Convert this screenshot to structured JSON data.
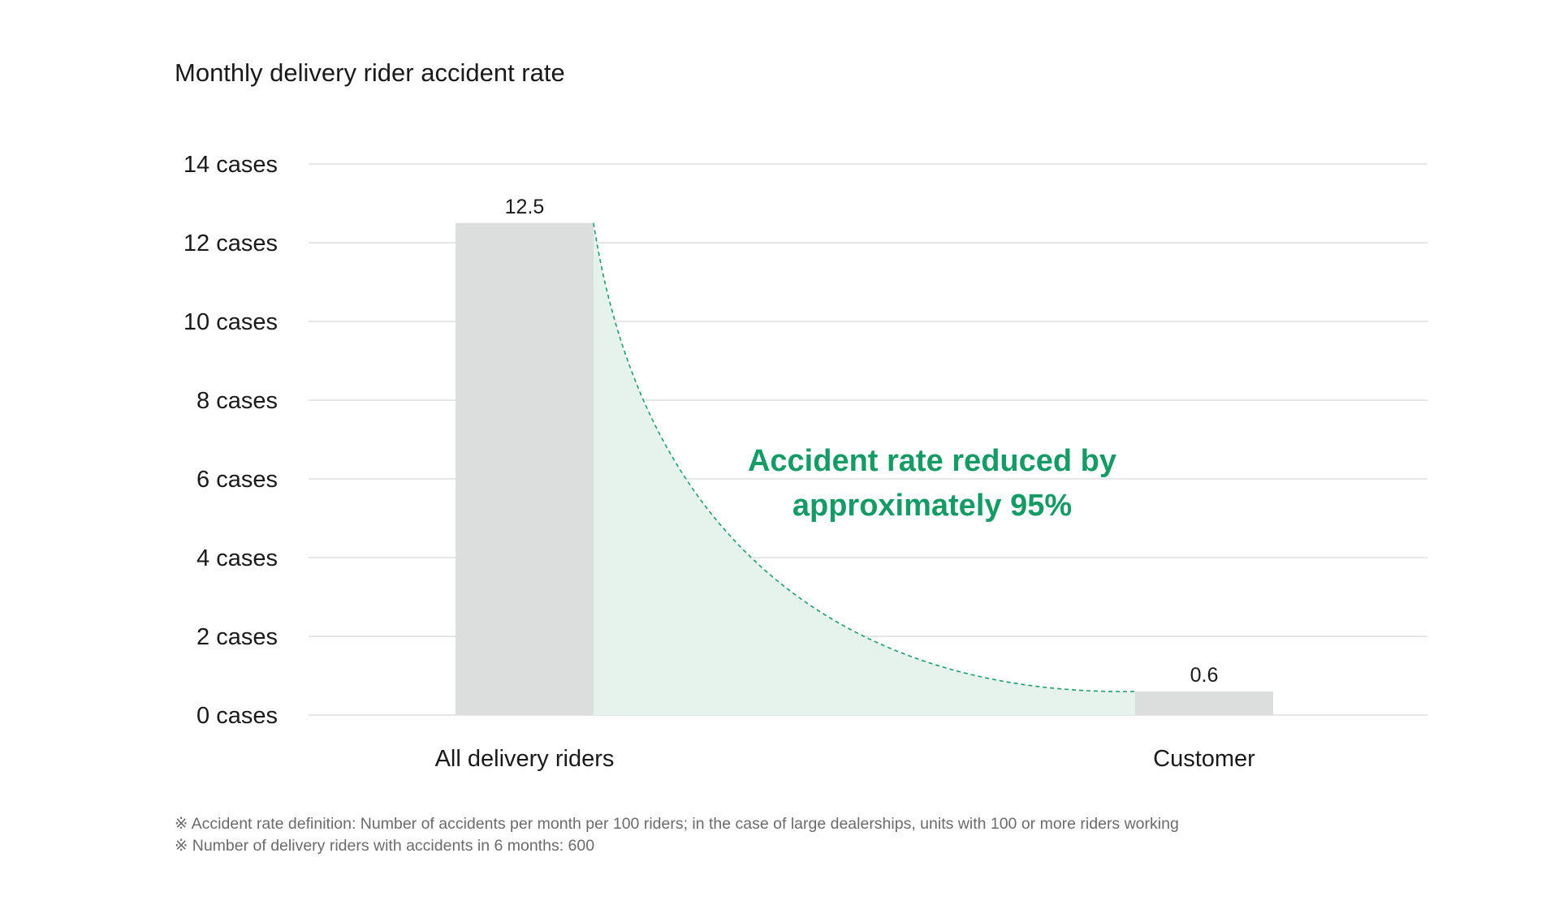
{
  "chart_data": {
    "type": "bar",
    "title": "Monthly delivery rider accident rate",
    "categories": [
      "All delivery riders",
      "Customer"
    ],
    "values": [
      12.5,
      0.6
    ],
    "value_labels": [
      "12.5",
      "0.6"
    ],
    "ylim": [
      0,
      14
    ],
    "yticks": [
      0,
      2,
      4,
      6,
      8,
      10,
      12,
      14
    ],
    "ytick_labels": [
      "0 cases",
      "2 cases",
      "4 cases",
      "6 cases",
      "8 cases",
      "10 cases",
      "12 cases",
      "14 cases"
    ],
    "xlabel": "",
    "ylabel": "",
    "grid": true,
    "annotation": {
      "lines": [
        "Accident rate reduced by",
        "approximately 95%"
      ]
    },
    "colors": {
      "bar": "#dcdedd",
      "annotation": "#169a66",
      "curve": "#1e9e6b",
      "fill": "#e5f3ec",
      "grid": "#dddddd",
      "text": "#1a1a1a"
    }
  },
  "footnotes": [
    "※ Accident rate definition: Number of accidents per month per 100 riders; in the case of large dealerships, units with 100 or more riders working",
    "※ Number of delivery riders with accidents in 6 months: 600"
  ]
}
